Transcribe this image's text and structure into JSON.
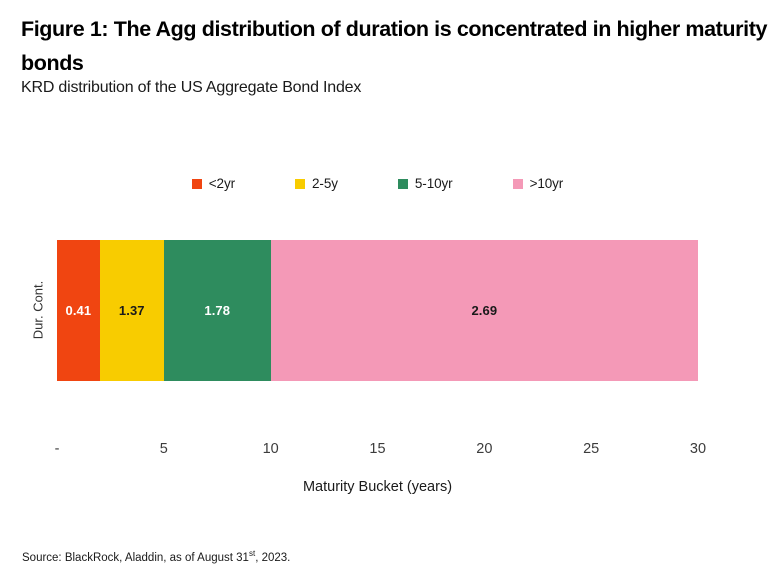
{
  "page": {
    "title": "Figure 1: The Agg distribution of duration is concentrated in higher maturity bonds",
    "subtitle": "KRD distribution of the US Aggregate Bond Index",
    "source_prefix": "Source: BlackRock, Aladdin, as of August 31",
    "source_superscript": "st",
    "source_suffix": ", 2023."
  },
  "chart_data": {
    "type": "bar",
    "orientation": "horizontal-stacked",
    "title": "KRD distribution of the US Aggregate Bond Index",
    "xlabel": "Maturity Bucket (years)",
    "ylabel": "Dur. Cont.",
    "xlim": [
      0,
      30
    ],
    "x_ticks": [
      "-",
      "5",
      "10",
      "15",
      "20",
      "25",
      "30"
    ],
    "x_tick_values": [
      0,
      5,
      10,
      15,
      20,
      25,
      30
    ],
    "legend_position": "top",
    "grid": false,
    "series": [
      {
        "name": "<2yr",
        "value": 0.41,
        "bucket_start": 0,
        "bucket_end": 2,
        "color": "#F04511",
        "label_color": "#FFFFFF"
      },
      {
        "name": "2-5y",
        "value": 1.37,
        "bucket_start": 2,
        "bucket_end": 5,
        "color": "#F8CC00",
        "label_color": "#1A1A1A"
      },
      {
        "name": "5-10yr",
        "value": 1.78,
        "bucket_start": 5,
        "bucket_end": 10,
        "color": "#2E8C5E",
        "label_color": "#FFFFFF"
      },
      {
        "name": ">10yr",
        "value": 2.69,
        "bucket_start": 10,
        "bucket_end": 30,
        "color": "#F499B7",
        "label_color": "#1A1A1A"
      }
    ]
  }
}
